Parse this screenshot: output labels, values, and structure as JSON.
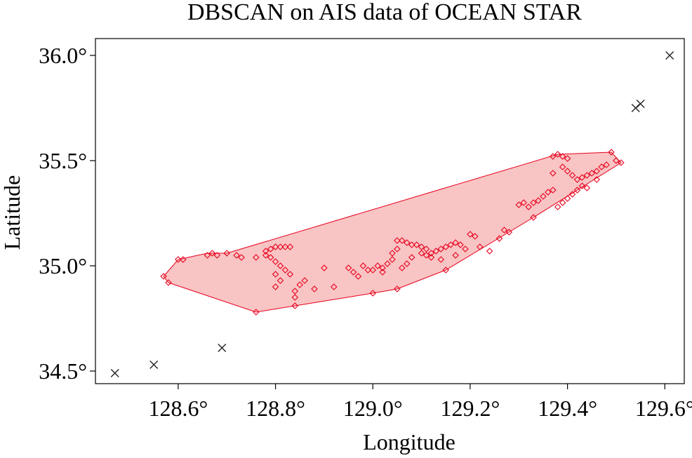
{
  "chart_data": {
    "type": "scatter",
    "title": "DBSCAN on AIS data of OCEAN STAR",
    "xlabel": "Longitude",
    "ylabel": "Latitude",
    "xlim": [
      128.43,
      129.64
    ],
    "ylim": [
      34.44,
      36.08
    ],
    "x_ticks": [
      128.6,
      128.8,
      129.0,
      129.2,
      129.4,
      129.6
    ],
    "x_tick_labels": [
      "128.6°",
      "128.8°",
      "129.0°",
      "129.2°",
      "129.4°",
      "129.6°"
    ],
    "y_ticks": [
      34.5,
      35.0,
      35.5,
      36.0
    ],
    "y_tick_labels": [
      "34.5°",
      "35.0°",
      "35.5°",
      "36.0°"
    ],
    "grid": false,
    "colors": {
      "cluster": "#e8001c",
      "hull_fill": "#f8c4c4",
      "noise": "#222222"
    },
    "cluster_hull": [
      [
        128.57,
        34.95
      ],
      [
        128.6,
        35.03
      ],
      [
        128.66,
        35.06
      ],
      [
        128.7,
        35.06
      ],
      [
        129.38,
        35.53
      ],
      [
        129.49,
        35.54
      ],
      [
        129.51,
        35.49
      ],
      [
        129.33,
        35.23
      ],
      [
        129.15,
        34.98
      ],
      [
        129.05,
        34.89
      ],
      [
        129.0,
        34.87
      ],
      [
        128.84,
        34.81
      ],
      [
        128.76,
        34.78
      ],
      [
        128.58,
        34.92
      ]
    ],
    "cluster_points": [
      [
        128.57,
        34.95
      ],
      [
        128.58,
        34.92
      ],
      [
        128.6,
        35.03
      ],
      [
        128.61,
        35.03
      ],
      [
        128.66,
        35.05
      ],
      [
        128.67,
        35.06
      ],
      [
        128.68,
        35.05
      ],
      [
        128.7,
        35.06
      ],
      [
        128.72,
        35.05
      ],
      [
        128.73,
        35.04
      ],
      [
        128.76,
        35.04
      ],
      [
        128.76,
        34.78
      ],
      [
        128.78,
        35.05
      ],
      [
        128.78,
        35.07
      ],
      [
        128.79,
        35.08
      ],
      [
        128.8,
        35.09
      ],
      [
        128.81,
        35.09
      ],
      [
        128.82,
        35.09
      ],
      [
        128.83,
        35.09
      ],
      [
        128.79,
        35.04
      ],
      [
        128.8,
        35.02
      ],
      [
        128.81,
        35.0
      ],
      [
        128.82,
        34.98
      ],
      [
        128.8,
        34.96
      ],
      [
        128.81,
        34.93
      ],
      [
        128.8,
        34.9
      ],
      [
        128.83,
        34.96
      ],
      [
        128.84,
        34.88
      ],
      [
        128.85,
        34.91
      ],
      [
        128.86,
        34.93
      ],
      [
        128.84,
        34.85
      ],
      [
        128.84,
        34.81
      ],
      [
        128.88,
        34.89
      ],
      [
        128.9,
        34.99
      ],
      [
        128.92,
        34.9
      ],
      [
        128.95,
        34.99
      ],
      [
        128.96,
        34.97
      ],
      [
        128.97,
        34.95
      ],
      [
        128.98,
        35.0
      ],
      [
        128.99,
        34.98
      ],
      [
        129.0,
        34.87
      ],
      [
        129.01,
        35.0
      ],
      [
        129.02,
        34.99
      ],
      [
        129.03,
        35.01
      ],
      [
        129.04,
        35.03
      ],
      [
        129.04,
        35.06
      ],
      [
        129.05,
        35.08
      ],
      [
        129.05,
        35.12
      ],
      [
        129.06,
        35.12
      ],
      [
        129.07,
        35.11
      ],
      [
        129.08,
        35.1
      ],
      [
        129.09,
        35.1
      ],
      [
        129.1,
        35.09
      ],
      [
        129.11,
        35.08
      ],
      [
        129.1,
        35.06
      ],
      [
        129.11,
        35.05
      ],
      [
        129.12,
        35.06
      ],
      [
        129.13,
        35.07
      ],
      [
        129.14,
        35.08
      ],
      [
        129.15,
        35.09
      ],
      [
        129.16,
        35.1
      ],
      [
        129.17,
        35.11
      ],
      [
        129.18,
        35.1
      ],
      [
        129.08,
        35.04
      ],
      [
        129.07,
        35.01
      ],
      [
        129.06,
        34.99
      ],
      [
        129.05,
        34.89
      ],
      [
        129.02,
        34.97
      ],
      [
        129.0,
        34.98
      ],
      [
        129.12,
        35.04
      ],
      [
        129.14,
        35.03
      ],
      [
        129.15,
        34.98
      ],
      [
        129.17,
        35.05
      ],
      [
        129.2,
        35.15
      ],
      [
        129.21,
        35.14
      ],
      [
        129.19,
        35.08
      ],
      [
        129.22,
        35.09
      ],
      [
        129.24,
        35.07
      ],
      [
        129.26,
        35.13
      ],
      [
        129.27,
        35.17
      ],
      [
        129.28,
        35.16
      ],
      [
        129.3,
        35.29
      ],
      [
        129.31,
        35.3
      ],
      [
        129.32,
        35.28
      ],
      [
        129.33,
        35.3
      ],
      [
        129.33,
        35.23
      ],
      [
        129.34,
        35.31
      ],
      [
        129.35,
        35.33
      ],
      [
        129.36,
        35.35
      ],
      [
        129.37,
        35.36
      ],
      [
        129.37,
        35.44
      ],
      [
        129.37,
        35.52
      ],
      [
        129.38,
        35.53
      ],
      [
        129.39,
        35.52
      ],
      [
        129.4,
        35.51
      ],
      [
        129.39,
        35.47
      ],
      [
        129.4,
        35.45
      ],
      [
        129.41,
        35.43
      ],
      [
        129.42,
        35.41
      ],
      [
        129.43,
        35.42
      ],
      [
        129.44,
        35.43
      ],
      [
        129.45,
        35.44
      ],
      [
        129.43,
        35.38
      ],
      [
        129.42,
        35.36
      ],
      [
        129.41,
        35.34
      ],
      [
        129.4,
        35.32
      ],
      [
        129.39,
        35.3
      ],
      [
        129.38,
        35.28
      ],
      [
        129.46,
        35.45
      ],
      [
        129.47,
        35.47
      ],
      [
        129.48,
        35.48
      ],
      [
        129.49,
        35.54
      ],
      [
        129.5,
        35.5
      ],
      [
        129.51,
        35.49
      ],
      [
        129.46,
        35.41
      ],
      [
        129.44,
        35.37
      ]
    ],
    "noise_points": [
      [
        128.47,
        34.49
      ],
      [
        128.55,
        34.53
      ],
      [
        128.69,
        34.61
      ],
      [
        129.54,
        35.75
      ],
      [
        129.55,
        35.77
      ],
      [
        129.61,
        36.0
      ]
    ]
  }
}
